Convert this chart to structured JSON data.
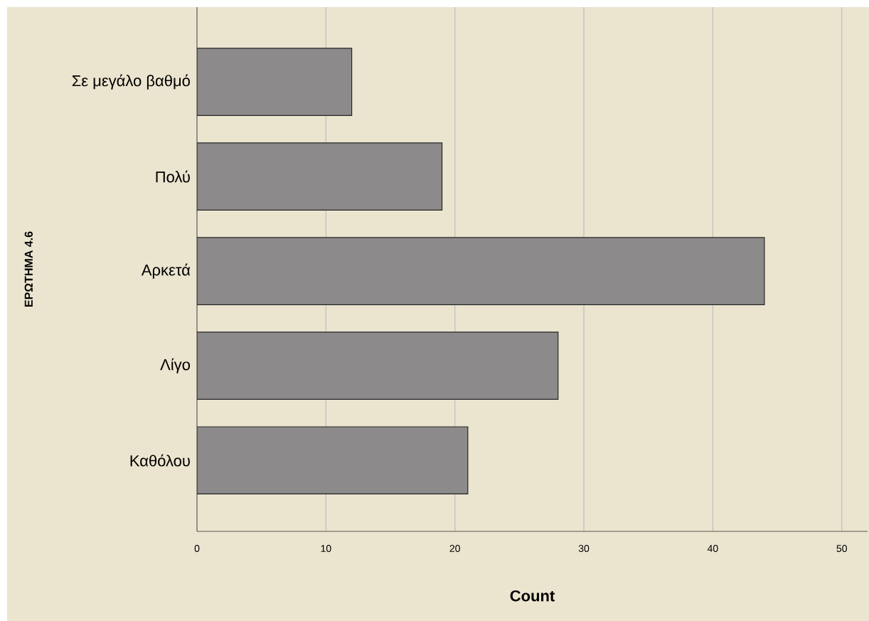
{
  "chart_data": {
    "type": "bar",
    "orientation": "horizontal",
    "xlabel": "Count",
    "ylabel": "ΕΡΩΤΗΜΑ 4.6",
    "categories": [
      "Σε μεγάλο βαθμό",
      "Πολύ",
      "Αρκετά",
      "Λίγο",
      "Καθόλου"
    ],
    "values": [
      12,
      19,
      44,
      28,
      21
    ],
    "color": "#8c8a8a",
    "xlim": [
      0,
      52
    ],
    "xticks": [
      0,
      10,
      20,
      30,
      40,
      50
    ],
    "grid": "x"
  }
}
